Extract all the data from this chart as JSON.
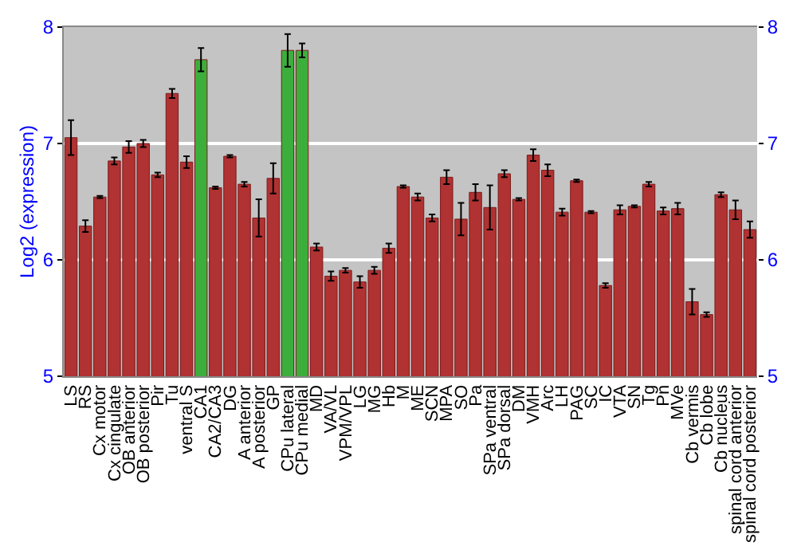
{
  "chart_data": {
    "type": "bar",
    "ylabel": "Log2 (expression)",
    "categories": [
      "LS",
      "RS",
      "Cx motor",
      "Cx cingulate",
      "OB anterior",
      "OB posterior",
      "Pir",
      "Tu",
      "ventral S",
      "CA1",
      "CA2/CA3",
      "DG",
      "A anterior",
      "A posterior",
      "GP",
      "CPu lateral",
      "CPu medial",
      "MD",
      "VA/VL",
      "VPM/VPL",
      "LG",
      "MG",
      "Hb",
      "M",
      "ME",
      "SCN",
      "MPA",
      "SO",
      "Pa",
      "SPa ventral",
      "SPa dorsal",
      "DM",
      "VMH",
      "Arc",
      "LH",
      "PAG",
      "SC",
      "IC",
      "VTA",
      "SN",
      "Tg",
      "Pn",
      "MVe",
      "Cb vermis",
      "Cb lobe",
      "Cb nucleus",
      "spinal cord anterior",
      "spinal cord posterior"
    ],
    "values": [
      7.05,
      6.29,
      6.54,
      6.85,
      6.97,
      7.0,
      6.73,
      7.43,
      6.84,
      7.72,
      6.62,
      6.89,
      6.65,
      6.36,
      6.7,
      7.8,
      7.8,
      6.11,
      5.86,
      5.91,
      5.81,
      5.91,
      6.1,
      6.63,
      6.54,
      6.36,
      6.71,
      6.35,
      6.58,
      6.45,
      6.74,
      6.52,
      6.9,
      6.77,
      6.41,
      6.68,
      6.41,
      5.78,
      6.43,
      6.46,
      6.65,
      6.42,
      6.44,
      5.64,
      5.53,
      6.56,
      6.43,
      6.26
    ],
    "errors": [
      0.15,
      0.05,
      0.01,
      0.03,
      0.05,
      0.03,
      0.02,
      0.04,
      0.05,
      0.1,
      0.01,
      0.01,
      0.02,
      0.16,
      0.13,
      0.14,
      0.06,
      0.03,
      0.04,
      0.02,
      0.05,
      0.03,
      0.04,
      0.01,
      0.03,
      0.03,
      0.06,
      0.14,
      0.07,
      0.19,
      0.03,
      0.01,
      0.05,
      0.05,
      0.03,
      0.01,
      0.01,
      0.02,
      0.04,
      0.01,
      0.02,
      0.03,
      0.05,
      0.11,
      0.02,
      0.02,
      0.08,
      0.07
    ],
    "colors": [
      "#b03232",
      "#b03232",
      "#b03232",
      "#b03232",
      "#b03232",
      "#b03232",
      "#b03232",
      "#b03232",
      "#b03232",
      "#3cae3c",
      "#b03232",
      "#b03232",
      "#b03232",
      "#b03232",
      "#b03232",
      "#3cae3c",
      "#3cae3c",
      "#b03232",
      "#b03232",
      "#b03232",
      "#b03232",
      "#b03232",
      "#b03232",
      "#b03232",
      "#b03232",
      "#b03232",
      "#b03232",
      "#b03232",
      "#b03232",
      "#b03232",
      "#b03232",
      "#b03232",
      "#b03232",
      "#b03232",
      "#b03232",
      "#b03232",
      "#b03232",
      "#b03232",
      "#b03232",
      "#b03232",
      "#b03232",
      "#b03232",
      "#b03232",
      "#b03232",
      "#b03232",
      "#b03232",
      "#b03232",
      "#b03232"
    ],
    "ylim": [
      5,
      8
    ],
    "yticks": [
      5,
      6,
      7,
      8
    ],
    "y2lim": [
      5,
      8
    ],
    "y2ticks": [
      5,
      6,
      7,
      8
    ],
    "grid": "y"
  }
}
